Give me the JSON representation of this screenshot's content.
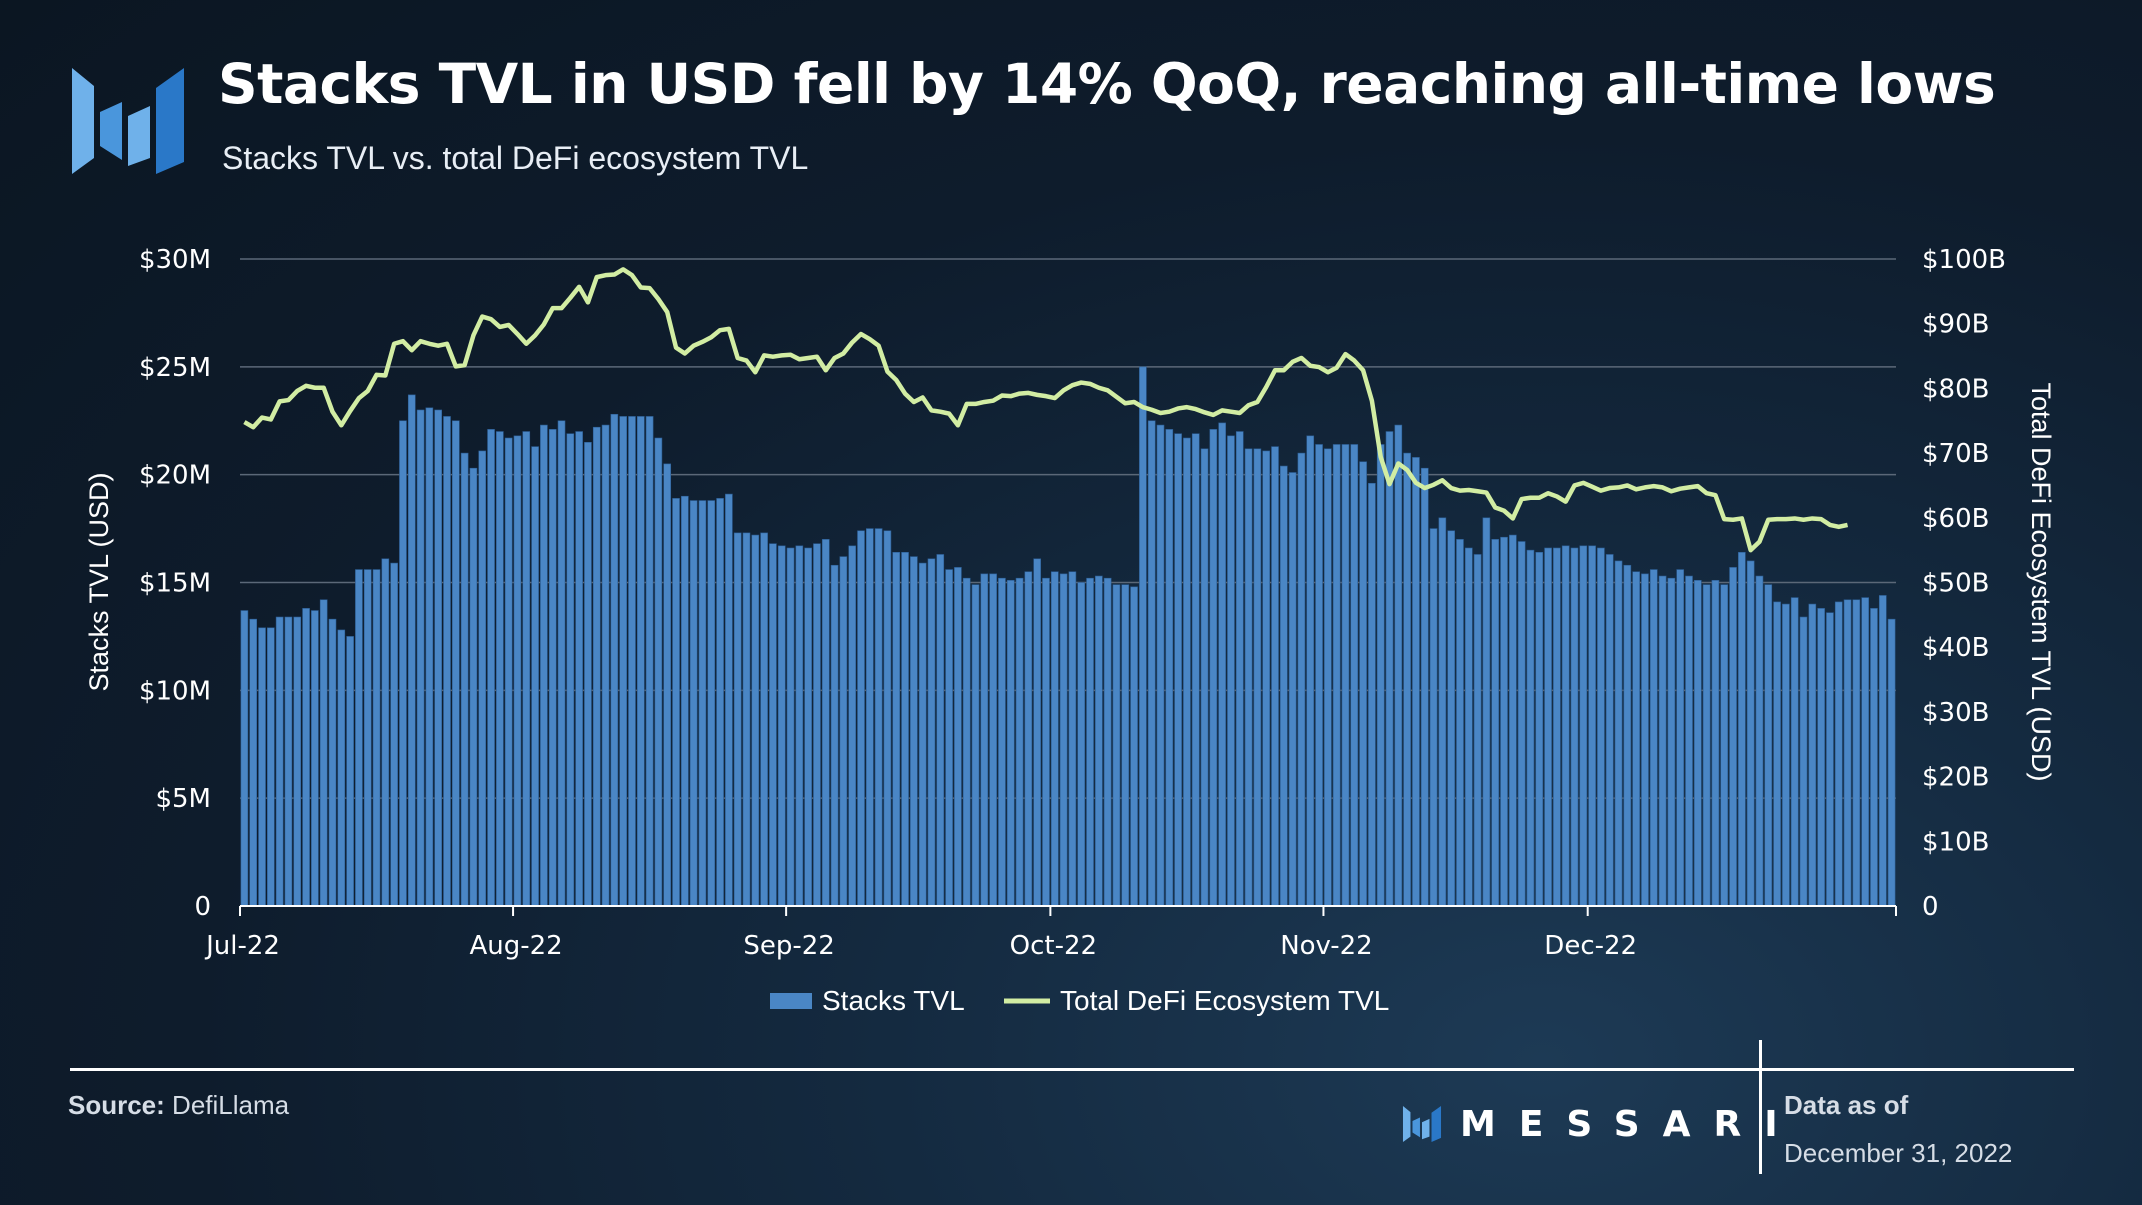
{
  "header": {
    "title": "Stacks TVL in USD fell by 14% QoQ, reaching all-time lows",
    "subtitle": "Stacks TVL vs. total DeFi ecosystem TVL"
  },
  "colors": {
    "bar": "#4a86c5",
    "bar_edge": "#2c5d93",
    "line": "#d2eda3",
    "grid": "#5b6878",
    "logo_light": "#6fb1ea",
    "logo_dark": "#2a78c8"
  },
  "chart_data": {
    "type": "bar+line",
    "x_ticks": [
      "Jul-22",
      "Aug-22",
      "Sep-22",
      "Oct-22",
      "Nov-22",
      "Dec-22"
    ],
    "x_start": "2022-07-01",
    "left_axis": {
      "label": "Stacks TVL (USD)",
      "ticks": [
        "0",
        "$5M",
        "$10M",
        "$15M",
        "$20M",
        "$25M",
        "$30M"
      ],
      "range": [
        0,
        30
      ]
    },
    "right_axis": {
      "label": "Total DeFi Ecosystem TVL (USD)",
      "ticks": [
        "0",
        "$10B",
        "$20B",
        "$30B",
        "$40B",
        "$50B",
        "$60B",
        "$70B",
        "$80B",
        "$90B",
        "$100B"
      ],
      "range": [
        0,
        100
      ]
    },
    "grid": "horizontal",
    "legend_position": "bottom-center",
    "series": [
      {
        "name": "Stacks TVL",
        "type": "bar",
        "axis": "left",
        "unit": "USD millions",
        "values": [
          13.7,
          13.3,
          12.9,
          12.9,
          13.4,
          13.4,
          13.4,
          13.8,
          13.7,
          14.2,
          13.3,
          12.8,
          12.5,
          15.6,
          15.6,
          15.6,
          16.1,
          15.9,
          22.5,
          23.7,
          23.0,
          23.1,
          23.0,
          22.7,
          22.5,
          21.0,
          20.3,
          21.1,
          22.1,
          22.0,
          21.7,
          21.8,
          22.0,
          21.3,
          22.3,
          22.1,
          22.5,
          21.9,
          22.0,
          21.5,
          22.2,
          22.3,
          22.8,
          22.7,
          22.7,
          22.7,
          22.7,
          21.7,
          20.5,
          18.9,
          19.0,
          18.8,
          18.8,
          18.8,
          18.9,
          19.1,
          17.3,
          17.3,
          17.2,
          17.3,
          16.8,
          16.7,
          16.6,
          16.7,
          16.6,
          16.8,
          17.0,
          15.8,
          16.2,
          16.7,
          17.4,
          17.5,
          17.5,
          17.4,
          16.4,
          16.4,
          16.2,
          15.9,
          16.1,
          16.3,
          15.6,
          15.7,
          15.2,
          14.9,
          15.4,
          15.4,
          15.2,
          15.1,
          15.2,
          15.5,
          16.1,
          15.2,
          15.5,
          15.4,
          15.5,
          15.0,
          15.2,
          15.3,
          15.2,
          14.9,
          14.9,
          14.8,
          25.0,
          22.5,
          22.3,
          22.1,
          21.9,
          21.7,
          21.9,
          21.2,
          22.1,
          22.4,
          21.8,
          22.0,
          21.2,
          21.2,
          21.1,
          21.3,
          20.4,
          20.1,
          21.0,
          21.8,
          21.4,
          21.2,
          21.4,
          21.4,
          21.4,
          20.6,
          19.6,
          21.4,
          22.0,
          22.3,
          21.0,
          20.8,
          20.3,
          17.5,
          18.0,
          17.4,
          17.0,
          16.6,
          16.3,
          18.0,
          17.0,
          17.1,
          17.2,
          16.9,
          16.5,
          16.4,
          16.6,
          16.6,
          16.7,
          16.6,
          16.7,
          16.7,
          16.6,
          16.3,
          16.0,
          15.8,
          15.5,
          15.4,
          15.6,
          15.3,
          15.2,
          15.6,
          15.3,
          15.1,
          14.9,
          15.1,
          14.9,
          15.7,
          16.4,
          16.0,
          15.3,
          14.9,
          14.1,
          14.0,
          14.3,
          13.4,
          14.0,
          13.8,
          13.6,
          14.1,
          14.2,
          14.2,
          14.3,
          13.8,
          14.4,
          13.3
        ]
      },
      {
        "name": "Total DeFi Ecosystem TVL",
        "type": "line",
        "axis": "right",
        "unit": "USD billions",
        "values": [
          74.8,
          74.0,
          75.5,
          75.2,
          78.0,
          78.2,
          79.6,
          80.4,
          80.1,
          80.1,
          76.4,
          74.3,
          76.5,
          78.5,
          79.6,
          82.1,
          82.0,
          86.9,
          87.3,
          85.9,
          87.3,
          86.9,
          86.6,
          86.9,
          83.4,
          83.6,
          88.2,
          91.1,
          90.7,
          89.5,
          89.8,
          88.4,
          86.9,
          88.2,
          89.9,
          92.4,
          92.4,
          94.0,
          95.7,
          93.3,
          97.2,
          97.5,
          97.6,
          98.4,
          97.5,
          95.6,
          95.5,
          93.8,
          91.8,
          86.3,
          85.4,
          86.6,
          87.2,
          87.9,
          89.0,
          89.2,
          84.7,
          84.3,
          82.5,
          85.1,
          84.9,
          85.1,
          85.2,
          84.5,
          84.7,
          84.9,
          82.8,
          84.7,
          85.4,
          87.1,
          88.4,
          87.6,
          86.6,
          82.6,
          81.3,
          79.2,
          77.9,
          78.6,
          76.6,
          76.4,
          76.1,
          74.3,
          77.6,
          77.6,
          77.9,
          78.1,
          78.9,
          78.8,
          79.2,
          79.3,
          79.0,
          78.8,
          78.5,
          79.7,
          80.5,
          80.9,
          80.7,
          80.1,
          79.7,
          78.7,
          77.7,
          77.9,
          77.1,
          76.7,
          76.2,
          76.4,
          76.9,
          77.1,
          76.8,
          76.3,
          75.9,
          76.6,
          76.4,
          76.2,
          77.4,
          77.9,
          80.2,
          82.8,
          82.8,
          84.1,
          84.7,
          83.5,
          83.3,
          82.5,
          83.2,
          85.3,
          84.3,
          82.8,
          78.1,
          69.4,
          65.2,
          68.4,
          67.4,
          65.4,
          64.6,
          65.1,
          65.8,
          64.6,
          64.2,
          64.3,
          64.1,
          63.9,
          61.6,
          61.1,
          59.9,
          62.9,
          63.1,
          63.1,
          63.8,
          63.3,
          62.5,
          65.0,
          65.4,
          64.8,
          64.2,
          64.6,
          64.7,
          65.0,
          64.4,
          64.7,
          64.9,
          64.7,
          64.1,
          64.5,
          64.7,
          64.9,
          63.8,
          63.5,
          59.8,
          59.7,
          59.9,
          55.0,
          56.3,
          59.7,
          59.8,
          59.8,
          59.9,
          59.7,
          59.9,
          59.8,
          58.9,
          58.6,
          58.9
        ]
      }
    ]
  },
  "footer": {
    "source_label": "Source:",
    "source_value": "DefiLlama",
    "brand": "MESSARI",
    "asof_label": "Data as of",
    "asof_date": "December 31, 2022"
  }
}
